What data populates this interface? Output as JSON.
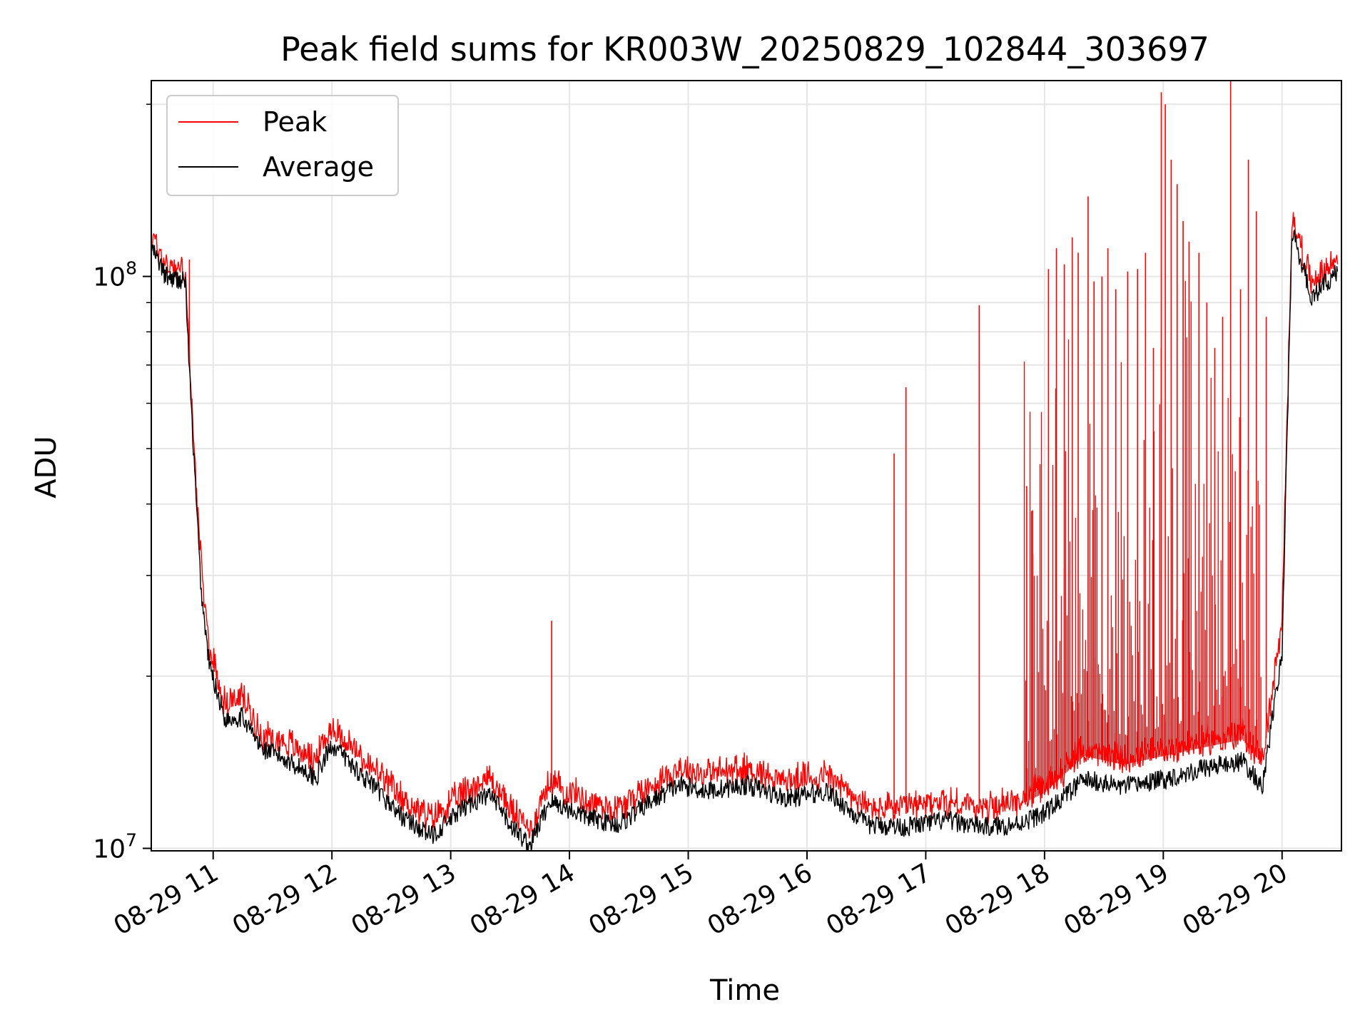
{
  "chart_data": {
    "type": "line",
    "title": "Peak field sums for KR003W_20250829_102844_303697",
    "xlabel": "Time",
    "ylabel": "ADU",
    "yscale": "log",
    "xlim": [
      "2025-08-29 10:28:44",
      "2025-08-29 20:30:00"
    ],
    "ylim": [
      9900000,
      220000000
    ],
    "x_ticks": [
      "08-29 11",
      "08-29 12",
      "08-29 13",
      "08-29 14",
      "08-29 15",
      "08-29 16",
      "08-29 17",
      "08-29 18",
      "08-29 19",
      "08-29 20"
    ],
    "x_tick_hours": [
      11,
      12,
      13,
      14,
      15,
      16,
      17,
      18,
      19,
      20
    ],
    "y_major_ticks": [
      {
        "value": 10000000,
        "base": "10",
        "exp": "7"
      },
      {
        "value": 100000000,
        "base": "10",
        "exp": "8"
      }
    ],
    "grid": true,
    "legend_position": "top-left",
    "series": [
      {
        "name": "Peak",
        "color": "#ff0000",
        "x": [
          "2025-08-29 10:29",
          "2025-08-29 10:36",
          "2025-08-29 10:46",
          "2025-08-29 10:48",
          "2025-08-29 10:51",
          "2025-08-29 10:54",
          "2025-08-29 10:58",
          "2025-08-29 11:06",
          "2025-08-29 11:15",
          "2025-08-29 11:24",
          "2025-08-29 11:37",
          "2025-08-29 11:52",
          "2025-08-29 12:00",
          "2025-08-29 12:20",
          "2025-08-29 12:35",
          "2025-08-29 12:50",
          "2025-08-29 13:10",
          "2025-08-29 13:20",
          "2025-08-29 13:30",
          "2025-08-29 13:40",
          "2025-08-29 13:50",
          "2025-08-29 14:10",
          "2025-08-29 14:25",
          "2025-08-29 14:40",
          "2025-08-29 14:55",
          "2025-08-29 15:10",
          "2025-08-29 15:30",
          "2025-08-29 15:50",
          "2025-08-29 16:10",
          "2025-08-29 16:30",
          "2025-08-29 16:50",
          "2025-08-29 17:10",
          "2025-08-29 17:30",
          "2025-08-29 17:45",
          "2025-08-29 18:00",
          "2025-08-29 18:20",
          "2025-08-29 18:40",
          "2025-08-29 19:00",
          "2025-08-29 19:20",
          "2025-08-29 19:40",
          "2025-08-29 19:50",
          "2025-08-29 20:00",
          "2025-08-29 20:05",
          "2025-08-29 20:15",
          "2025-08-29 20:28"
        ],
        "values": [
          115000000,
          103000000,
          100000000,
          70000000,
          45000000,
          30000000,
          22000000,
          17500000,
          18000000,
          15500000,
          15000000,
          14000000,
          16000000,
          13500000,
          12000000,
          11000000,
          12500000,
          13000000,
          11500000,
          10500000,
          12800000,
          11800000,
          11500000,
          12500000,
          13500000,
          13200000,
          13500000,
          12800000,
          13200000,
          11500000,
          11500000,
          11800000,
          11500000,
          11800000,
          12500000,
          14500000,
          14000000,
          14500000,
          15000000,
          15500000,
          14000000,
          24000000,
          125000000,
          95000000,
          105000000
        ],
        "spikes": [
          {
            "x": "2025-08-29 10:48",
            "y": 107000000
          },
          {
            "x": "2025-08-29 13:51",
            "y": 25000000
          },
          {
            "x": "2025-08-29 16:44",
            "y": 49000000
          },
          {
            "x": "2025-08-29 16:50",
            "y": 64000000
          },
          {
            "x": "2025-08-29 17:27",
            "y": 89000000
          },
          {
            "x": "2025-08-29 17:51",
            "y": 43000000
          },
          {
            "x": "2025-08-29 17:54",
            "y": 39000000
          },
          {
            "x": "2025-08-29 18:02",
            "y": 103000000
          },
          {
            "x": "2025-08-29 18:06",
            "y": 112000000
          },
          {
            "x": "2025-08-29 18:10",
            "y": 105000000
          },
          {
            "x": "2025-08-29 18:14",
            "y": 117000000
          },
          {
            "x": "2025-08-29 18:17",
            "y": 110000000
          },
          {
            "x": "2025-08-29 18:22",
            "y": 138000000
          },
          {
            "x": "2025-08-29 18:25",
            "y": 98000000
          },
          {
            "x": "2025-08-29 18:29",
            "y": 100000000
          },
          {
            "x": "2025-08-29 18:32",
            "y": 112000000
          },
          {
            "x": "2025-08-29 18:36",
            "y": 95000000
          },
          {
            "x": "2025-08-29 18:42",
            "y": 102000000
          },
          {
            "x": "2025-08-29 18:47",
            "y": 103000000
          },
          {
            "x": "2025-08-29 18:51",
            "y": 110000000
          },
          {
            "x": "2025-08-29 18:55",
            "y": 75000000
          },
          {
            "x": "2025-08-29 18:59",
            "y": 210000000
          },
          {
            "x": "2025-08-29 19:01",
            "y": 200000000
          },
          {
            "x": "2025-08-29 19:04",
            "y": 160000000
          },
          {
            "x": "2025-08-29 19:07",
            "y": 145000000
          },
          {
            "x": "2025-08-29 19:10",
            "y": 125000000
          },
          {
            "x": "2025-08-29 19:13",
            "y": 115000000
          },
          {
            "x": "2025-08-29 19:18",
            "y": 110000000
          },
          {
            "x": "2025-08-29 19:22",
            "y": 90000000
          },
          {
            "x": "2025-08-29 19:26",
            "y": 75000000
          },
          {
            "x": "2025-08-29 19:30",
            "y": 85000000
          },
          {
            "x": "2025-08-29 19:34",
            "y": 220000000
          },
          {
            "x": "2025-08-29 19:39",
            "y": 95000000
          },
          {
            "x": "2025-08-29 19:43",
            "y": 160000000
          },
          {
            "x": "2025-08-29 19:47",
            "y": 130000000
          },
          {
            "x": "2025-08-29 19:52",
            "y": 85000000
          }
        ]
      },
      {
        "name": "Average",
        "color": "#000000",
        "x": [
          "2025-08-29 10:29",
          "2025-08-29 10:36",
          "2025-08-29 10:46",
          "2025-08-29 10:48",
          "2025-08-29 10:51",
          "2025-08-29 10:54",
          "2025-08-29 10:58",
          "2025-08-29 11:06",
          "2025-08-29 11:15",
          "2025-08-29 11:24",
          "2025-08-29 11:37",
          "2025-08-29 11:52",
          "2025-08-29 12:00",
          "2025-08-29 12:20",
          "2025-08-29 12:35",
          "2025-08-29 12:50",
          "2025-08-29 13:10",
          "2025-08-29 13:20",
          "2025-08-29 13:30",
          "2025-08-29 13:40",
          "2025-08-29 13:50",
          "2025-08-29 14:10",
          "2025-08-29 14:25",
          "2025-08-29 14:40",
          "2025-08-29 14:55",
          "2025-08-29 15:10",
          "2025-08-29 15:30",
          "2025-08-29 15:50",
          "2025-08-29 16:10",
          "2025-08-29 16:30",
          "2025-08-29 16:50",
          "2025-08-29 17:10",
          "2025-08-29 17:30",
          "2025-08-29 17:45",
          "2025-08-29 18:00",
          "2025-08-29 18:20",
          "2025-08-29 18:40",
          "2025-08-29 19:00",
          "2025-08-29 19:20",
          "2025-08-29 19:40",
          "2025-08-29 19:50",
          "2025-08-29 20:00",
          "2025-08-29 20:05",
          "2025-08-29 20:15",
          "2025-08-29 20:28"
        ],
        "values": [
          112000000,
          100000000,
          98000000,
          68000000,
          43000000,
          28000000,
          21000000,
          16800000,
          17000000,
          15000000,
          14300000,
          13300000,
          15200000,
          12900000,
          11400000,
          10500000,
          12000000,
          12400000,
          11000000,
          10100000,
          12100000,
          11300000,
          11000000,
          12000000,
          12900000,
          12600000,
          12900000,
          12200000,
          12600000,
          11000000,
          10900000,
          11200000,
          10900000,
          11000000,
          11500000,
          13200000,
          12800000,
          13200000,
          13800000,
          14200000,
          12800000,
          22000000,
          120000000,
          92000000,
          102000000
        ]
      }
    ]
  }
}
